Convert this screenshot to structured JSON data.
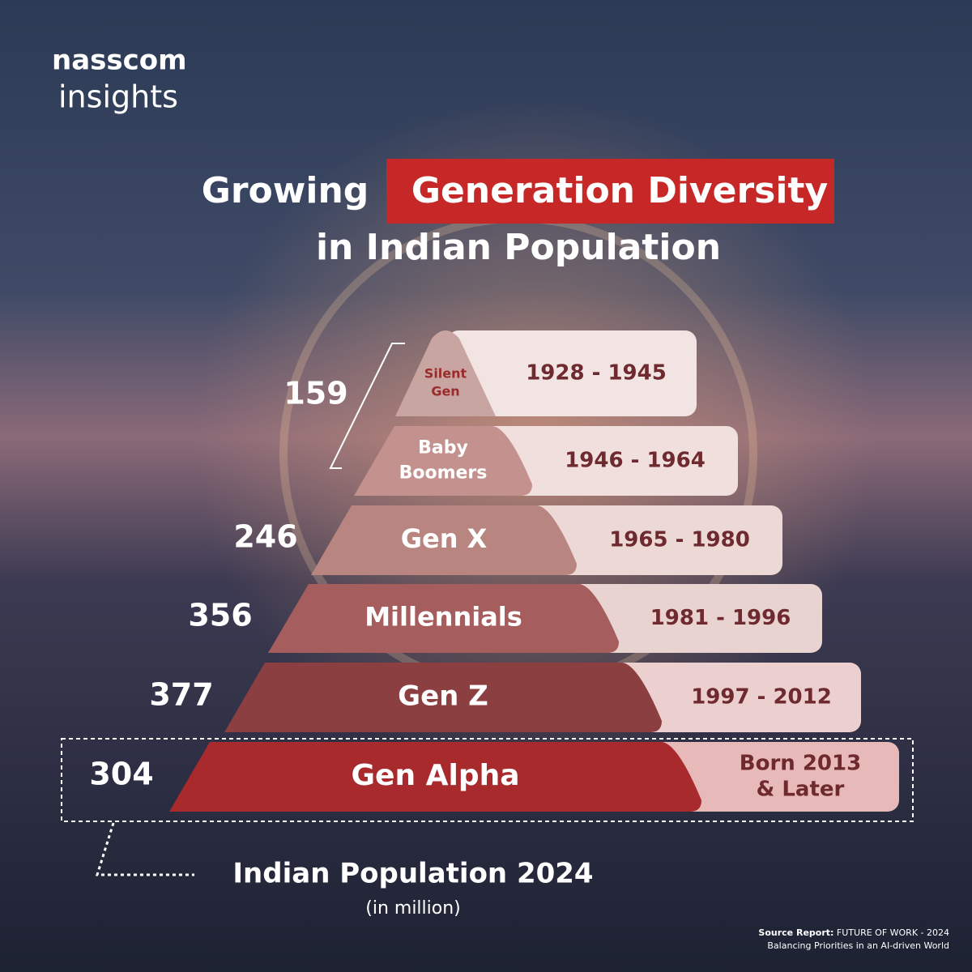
{
  "brand": {
    "name": "nasscom",
    "sub": "insights"
  },
  "title": {
    "plain": "Growing",
    "highlight": "Generation Diversity",
    "line2": "in Indian Population"
  },
  "generations": [
    {
      "name": [
        "Silent",
        "Gen"
      ],
      "years": [
        "1928 - 1945"
      ]
    },
    {
      "name": [
        "Baby",
        "Boomers"
      ],
      "years": [
        "1946 - 1964"
      ]
    },
    {
      "name": [
        "Gen X"
      ],
      "years": [
        "1965 - 1980"
      ]
    },
    {
      "name": [
        "Millennials"
      ],
      "years": [
        "1981 - 1996"
      ]
    },
    {
      "name": [
        "Gen Z"
      ],
      "years": [
        "1997 - 2012"
      ]
    },
    {
      "name": [
        "Gen Alpha"
      ],
      "years": [
        "Born 2013",
        "& Later"
      ]
    }
  ],
  "populations": [
    {
      "value": 159,
      "covers": [
        "Silent Gen",
        "Baby Boomers"
      ]
    },
    {
      "value": 246,
      "covers": [
        "Gen X"
      ]
    },
    {
      "value": 356,
      "covers": [
        "Millennials"
      ]
    },
    {
      "value": 377,
      "covers": [
        "Gen Z"
      ]
    },
    {
      "value": 304,
      "covers": [
        "Gen Alpha"
      ]
    }
  ],
  "footer": {
    "label": "Indian Population 2024",
    "unit": "(in million)"
  },
  "source": {
    "lead": "Source Report:",
    "report": "FUTURE OF WORK - 2024",
    "subtitle": "Balancing Priorities in an AI-driven World"
  }
}
